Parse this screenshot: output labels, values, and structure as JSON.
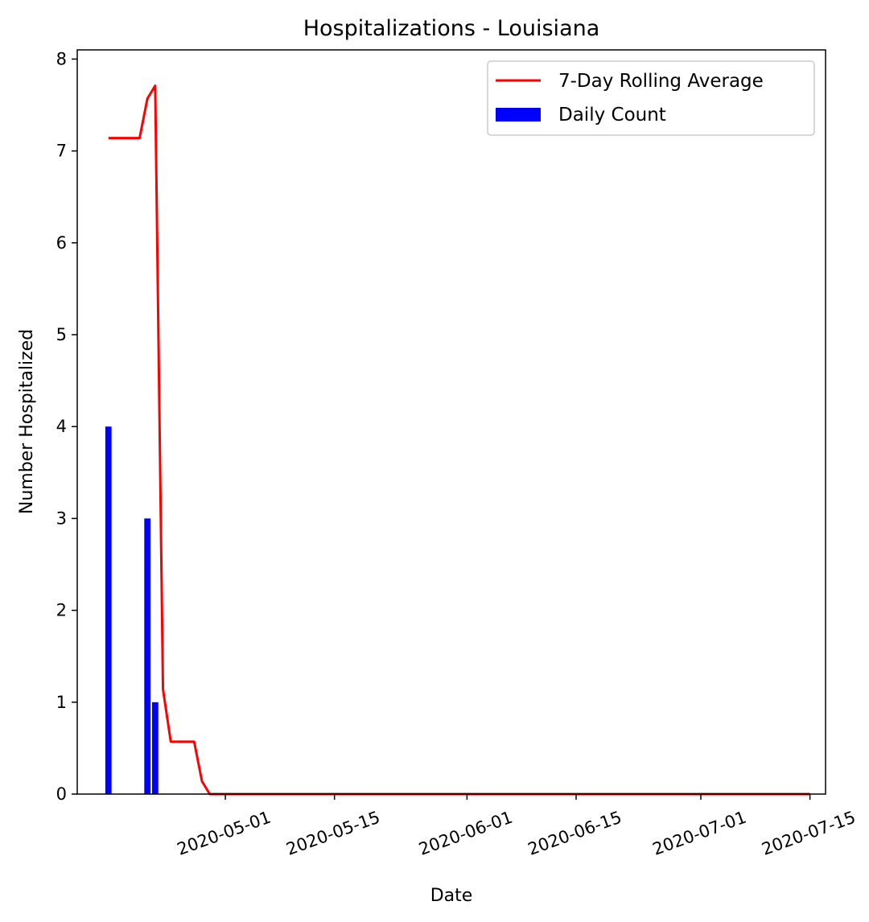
{
  "chart_data": {
    "type": "bar",
    "title": "Hospitalizations - Louisiana",
    "xlabel": "Date",
    "ylabel": "Number Hospitalized",
    "xlim": [
      "2020-04-12",
      "2020-07-17"
    ],
    "ylim": [
      0,
      8.1
    ],
    "yticks": [
      "0",
      "1",
      "2",
      "3",
      "4",
      "5",
      "6",
      "7",
      "8"
    ],
    "xticks": [
      "2020-05-01",
      "2020-05-15",
      "2020-06-01",
      "2020-06-15",
      "2020-07-01",
      "2020-07-15"
    ],
    "xtick_rotation_deg": 20,
    "grid": false,
    "legend_placement": "top-right",
    "colors": {
      "bar": "#0000ff",
      "line": "#ff0000"
    },
    "series": [
      {
        "name": "Daily Count",
        "kind": "bar",
        "points": [
          {
            "x": "2020-04-16",
            "y": 4
          },
          {
            "x": "2020-04-21",
            "y": 3
          },
          {
            "x": "2020-04-22",
            "y": 1
          }
        ]
      },
      {
        "name": "7-Day Rolling Average",
        "kind": "line",
        "points": [
          {
            "x": "2020-04-16",
            "y": 7.14
          },
          {
            "x": "2020-04-17",
            "y": 7.14
          },
          {
            "x": "2020-04-18",
            "y": 7.14
          },
          {
            "x": "2020-04-19",
            "y": 7.14
          },
          {
            "x": "2020-04-20",
            "y": 7.14
          },
          {
            "x": "2020-04-21",
            "y": 7.57
          },
          {
            "x": "2020-04-22",
            "y": 7.71
          },
          {
            "x": "2020-04-23",
            "y": 1.14
          },
          {
            "x": "2020-04-24",
            "y": 0.57
          },
          {
            "x": "2020-04-25",
            "y": 0.57
          },
          {
            "x": "2020-04-26",
            "y": 0.57
          },
          {
            "x": "2020-04-27",
            "y": 0.57
          },
          {
            "x": "2020-04-28",
            "y": 0.14
          },
          {
            "x": "2020-04-29",
            "y": 0
          },
          {
            "x": "2020-05-15",
            "y": 0
          },
          {
            "x": "2020-06-01",
            "y": 0
          },
          {
            "x": "2020-06-15",
            "y": 0
          },
          {
            "x": "2020-07-01",
            "y": 0
          },
          {
            "x": "2020-07-15",
            "y": 0
          }
        ]
      }
    ]
  }
}
